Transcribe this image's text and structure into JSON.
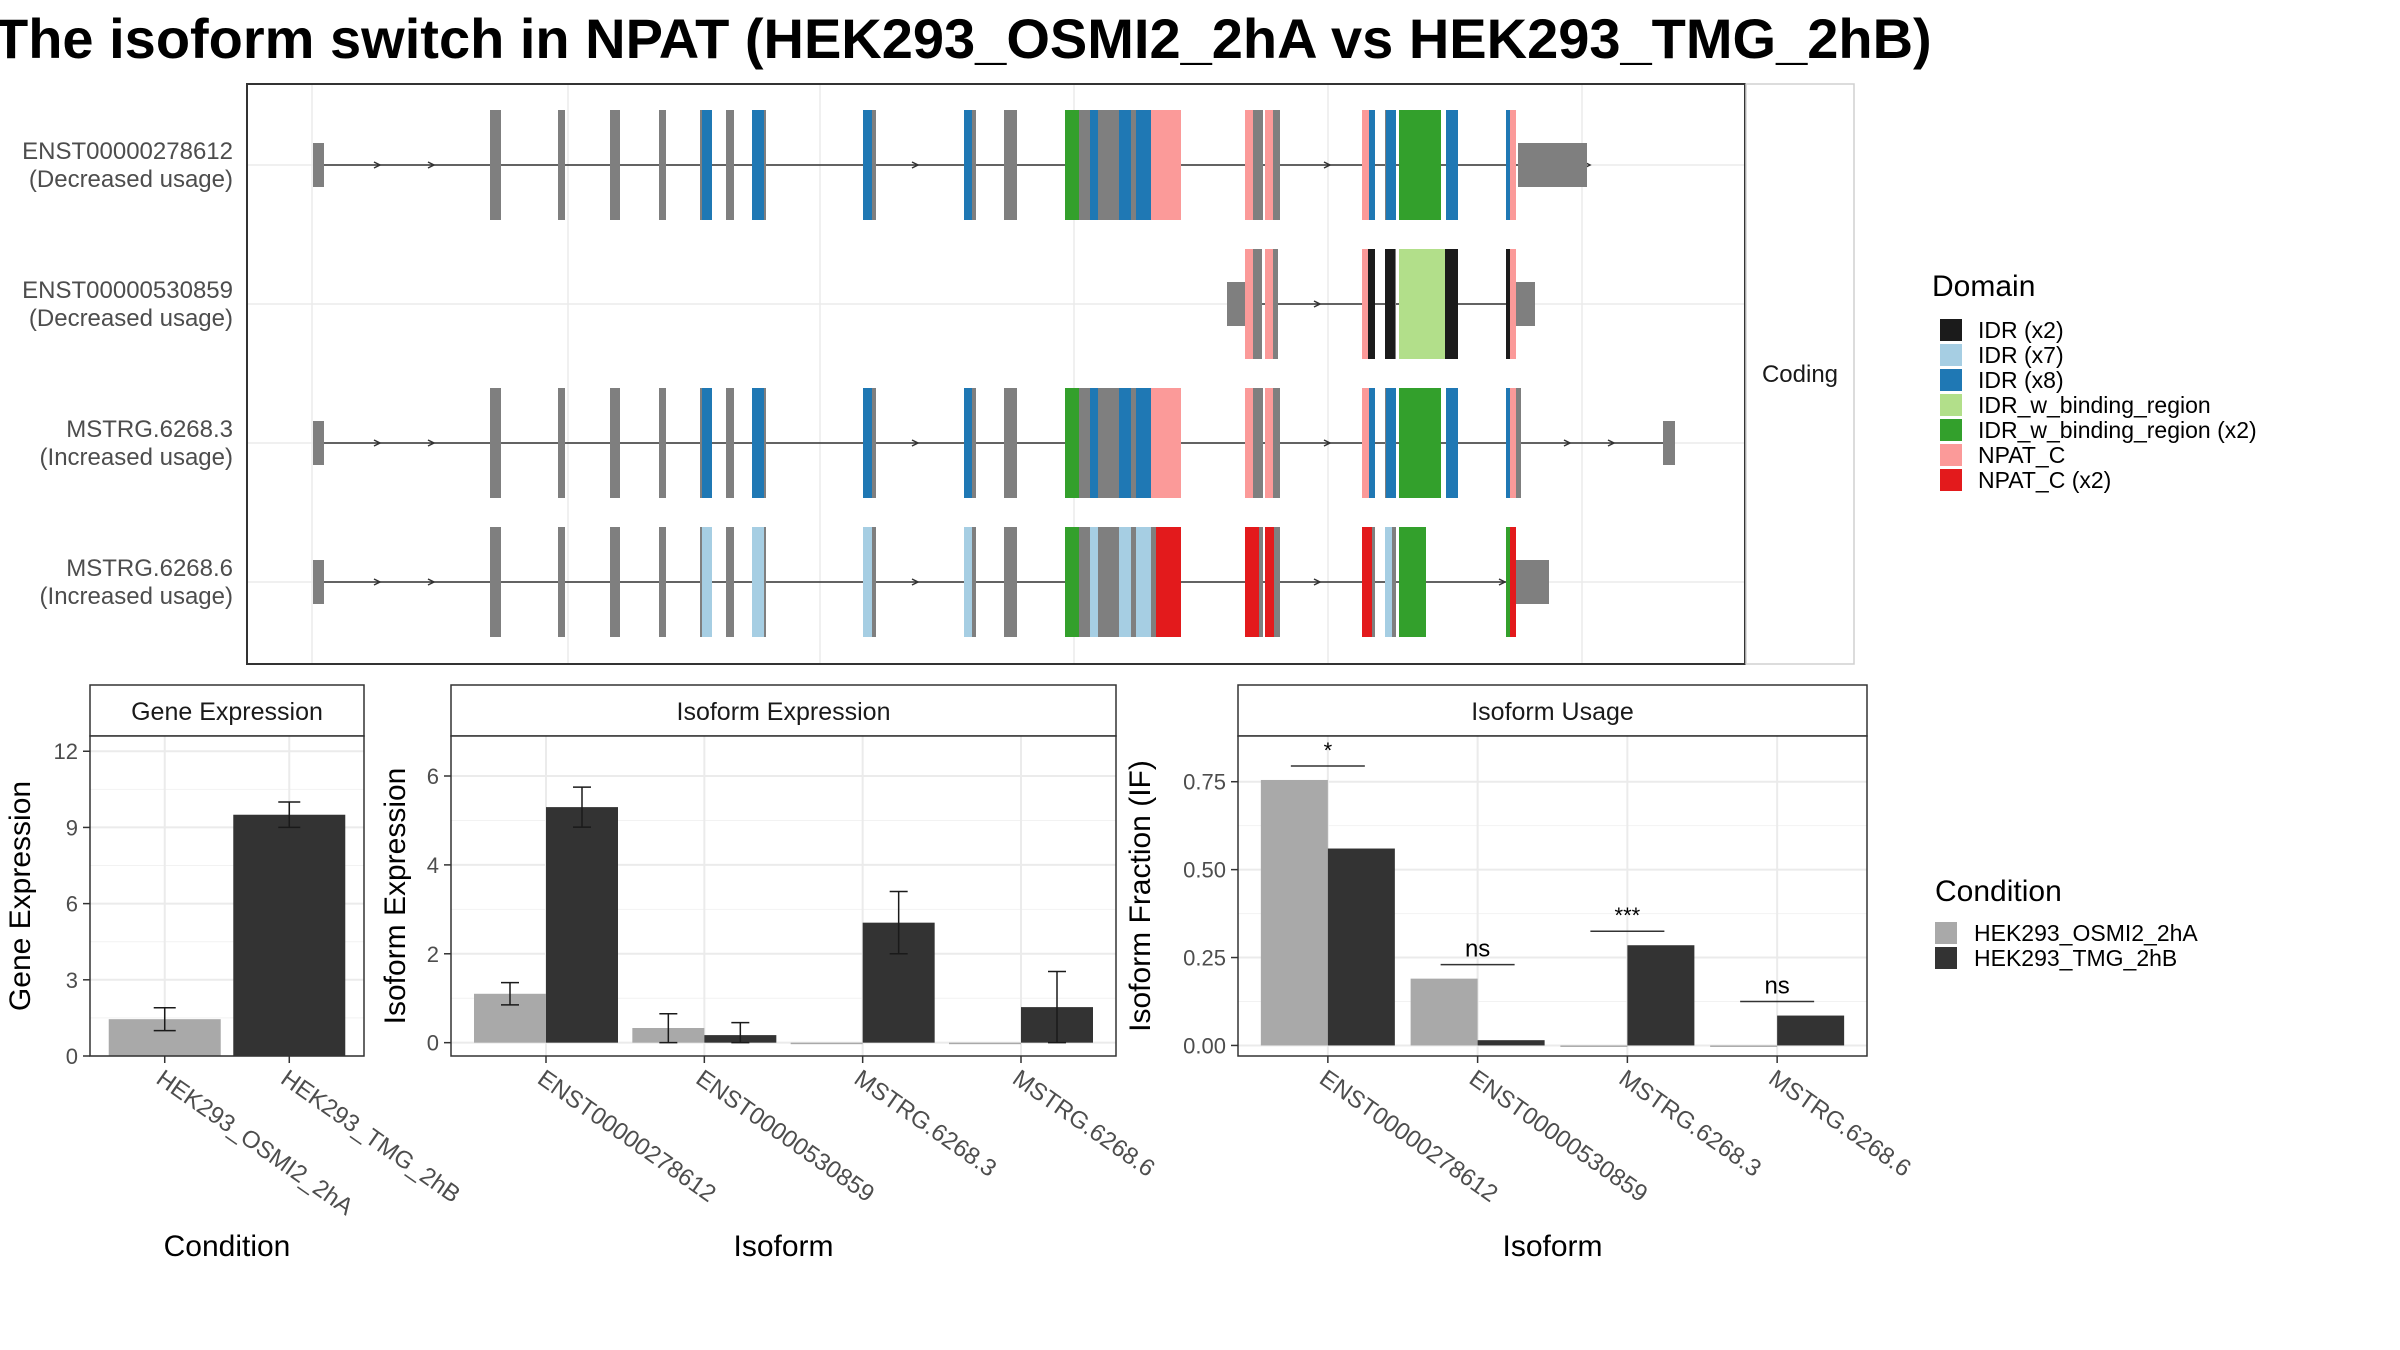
{
  "page": {
    "title": "The isoform switch in NPAT (HEK293_OSMI2_2hA vs HEK293_TMG_2hB)"
  },
  "colors": {
    "IDR (x2)": "#1b1b1b",
    "IDR (x7)": "#a6cee3",
    "IDR (x8)": "#1f78b4",
    "IDR_w_binding_region": "#b2df8a",
    "IDR_w_binding_region (x2)": "#33a02c",
    "NPAT_C": "#fb9a99",
    "NPAT_C (x2)": "#e31a1c",
    "exon": "#7f7f7f",
    "cond_a": "#a9a9a9",
    "cond_b": "#333333"
  },
  "chart_data": [
    {
      "type": "gene_structure",
      "facet_label": "Coding",
      "transcripts": [
        {
          "name": "ENST00000278612",
          "note": "(Decreased usage)"
        },
        {
          "name": "ENST00000530859",
          "note": "(Decreased usage)"
        },
        {
          "name": "MSTRG.6268.3",
          "note": "(Increased usage)"
        },
        {
          "name": "MSTRG.6268.6",
          "note": "(Increased usage)"
        }
      ],
      "legend": {
        "title": "Domain",
        "entries": [
          "IDR (x2)",
          "IDR (x7)",
          "IDR (x8)",
          "IDR_w_binding_region",
          "IDR_w_binding_region (x2)",
          "NPAT_C",
          "NPAT_C (x2)"
        ]
      }
    },
    {
      "type": "bar",
      "strip": "Gene Expression",
      "xlabel": "Condition",
      "ylabel": "Gene Expression",
      "categories": [
        "HEK293_OSMI2_2hA",
        "HEK293_TMG_2hB"
      ],
      "values": [
        1.45,
        9.5
      ],
      "error": [
        [
          1.0,
          1.9
        ],
        [
          9.0,
          10.0
        ]
      ],
      "ylim": [
        0,
        12.6
      ],
      "yticks": [
        0,
        3,
        6,
        9,
        12
      ]
    },
    {
      "type": "bar",
      "strip": "Isoform Expression",
      "xlabel": "Isoform",
      "ylabel": "Isoform Expression",
      "categories": [
        "ENST00000278612",
        "ENST00000530859",
        "MSTRG.6268.3",
        "MSTRG.6268.6"
      ],
      "series": [
        {
          "name": "HEK293_OSMI2_2hA",
          "values": [
            1.1,
            0.33,
            0.0,
            0.0
          ],
          "error": [
            [
              0.85,
              1.35
            ],
            [
              0.0,
              0.65
            ],
            null,
            null
          ]
        },
        {
          "name": "HEK293_TMG_2hB",
          "values": [
            5.3,
            0.17,
            2.7,
            0.8
          ],
          "error": [
            [
              4.85,
              5.75
            ],
            [
              0.0,
              0.45
            ],
            [
              2.0,
              3.4
            ],
            [
              0.0,
              1.6
            ]
          ]
        }
      ],
      "ylim": [
        -0.3,
        6.9
      ],
      "yticks": [
        0,
        2,
        4,
        6
      ]
    },
    {
      "type": "bar",
      "strip": "Isoform Usage",
      "xlabel": "Isoform",
      "ylabel": "Isoform Fraction (IF)",
      "categories": [
        "ENST00000278612",
        "ENST00000530859",
        "MSTRG.6268.3",
        "MSTRG.6268.6"
      ],
      "series": [
        {
          "name": "HEK293_OSMI2_2hA",
          "values": [
            0.755,
            0.19,
            0.0,
            0.0
          ]
        },
        {
          "name": "HEK293_TMG_2hB",
          "values": [
            0.56,
            0.015,
            0.285,
            0.085
          ]
        }
      ],
      "significance": [
        "*",
        "ns",
        "***",
        "ns"
      ],
      "ylim": [
        -0.03,
        0.88
      ],
      "yticks": [
        0.0,
        0.25,
        0.5,
        0.75
      ],
      "ytick_labels": [
        "0.00",
        "0.25",
        "0.50",
        "0.75"
      ],
      "legend": {
        "title": "Condition",
        "entries": [
          "HEK293_OSMI2_2hA",
          "HEK293_TMG_2hB"
        ]
      }
    }
  ]
}
